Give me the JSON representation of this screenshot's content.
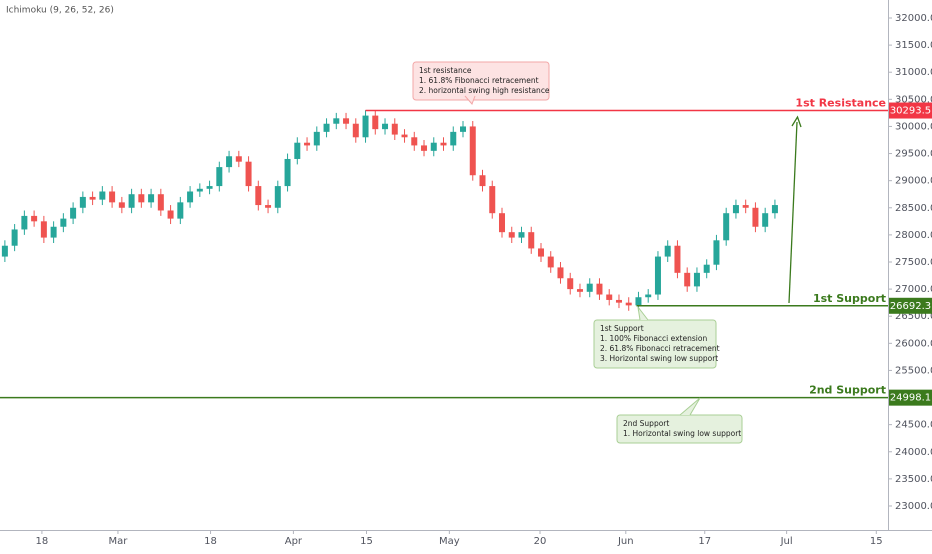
{
  "chart_data": {
    "type": "candlestick",
    "indicator": "Ichimoku (9, 26, 52, 26)",
    "open": [
      27600,
      27800,
      28100,
      28350,
      28250,
      27950,
      28150,
      28300,
      28500,
      28700,
      28650,
      28800,
      28600,
      28500,
      28750,
      28600,
      28750,
      28450,
      28300,
      28600,
      28800,
      28850,
      28900,
      29250,
      29450,
      29350,
      28900,
      28550,
      28500,
      28900,
      29400,
      29700,
      29650,
      29900,
      30050,
      30150,
      30050,
      29800,
      30200,
      29950,
      30050,
      29850,
      29800,
      29650,
      29550,
      29700,
      29650,
      29900,
      30000,
      29100,
      28900,
      28400,
      28050,
      27950,
      28050,
      27750,
      27600,
      27400,
      27200,
      27000,
      26950,
      27100,
      26900,
      26800,
      26750,
      26700,
      26850,
      26900,
      27600,
      27800,
      27300,
      27050,
      27300,
      27450,
      27900,
      28400,
      28550,
      28500,
      28150,
      28400
    ],
    "high": [
      27900,
      28200,
      28450,
      28450,
      28350,
      28250,
      28400,
      28600,
      28800,
      28800,
      28900,
      28900,
      28700,
      28850,
      28850,
      28850,
      28850,
      28550,
      28700,
      28900,
      28950,
      29000,
      29350,
      29550,
      29550,
      29450,
      29000,
      28650,
      29000,
      29500,
      29800,
      29800,
      30000,
      30150,
      30250,
      30250,
      30150,
      30300,
      30300,
      30150,
      30150,
      29950,
      29900,
      29750,
      29800,
      29800,
      30000,
      30100,
      30100,
      29200,
      29000,
      28500,
      28150,
      28150,
      28150,
      27850,
      27700,
      27500,
      27300,
      27100,
      27200,
      27200,
      27000,
      26900,
      26850,
      26950,
      27000,
      27700,
      27900,
      27900,
      27400,
      27400,
      27550,
      28000,
      28500,
      28650,
      28650,
      28600,
      28500,
      28650
    ],
    "low": [
      27500,
      27700,
      28000,
      28150,
      27850,
      27850,
      28050,
      28200,
      28400,
      28550,
      28550,
      28500,
      28400,
      28400,
      28500,
      28500,
      28350,
      28200,
      28200,
      28500,
      28700,
      28750,
      28800,
      29150,
      29250,
      28800,
      28450,
      28400,
      28400,
      28800,
      29300,
      29550,
      29550,
      29800,
      29950,
      29950,
      29700,
      29700,
      29850,
      29850,
      29750,
      29700,
      29550,
      29450,
      29450,
      29550,
      29550,
      29800,
      29000,
      28800,
      28300,
      27950,
      27850,
      27850,
      27650,
      27500,
      27300,
      27100,
      26900,
      26850,
      26850,
      26800,
      26700,
      26650,
      26600,
      26600,
      26750,
      26800,
      27500,
      27200,
      26950,
      26950,
      27200,
      27350,
      27800,
      28300,
      28400,
      28050,
      28050,
      28300
    ],
    "close": [
      27800,
      28100,
      28350,
      28250,
      27950,
      28150,
      28300,
      28500,
      28700,
      28650,
      28800,
      28600,
      28500,
      28750,
      28600,
      28750,
      28450,
      28300,
      28600,
      28800,
      28850,
      28900,
      29250,
      29450,
      29350,
      28900,
      28550,
      28500,
      28900,
      29400,
      29700,
      29650,
      29900,
      30050,
      30150,
      30050,
      29800,
      30200,
      29950,
      30050,
      29850,
      29800,
      29650,
      29550,
      29700,
      29650,
      29900,
      30000,
      29100,
      28900,
      28400,
      28050,
      27950,
      28050,
      27750,
      27600,
      27400,
      27200,
      27000,
      26950,
      27100,
      26900,
      26800,
      26750,
      26700,
      26850,
      26900,
      27600,
      27800,
      27300,
      27050,
      27300,
      27450,
      27900,
      28400,
      28550,
      28500,
      28150,
      28400,
      28550
    ],
    "up_color": "#26a69a",
    "down_color": "#ef5350",
    "xlim": [
      -0.5,
      90.6
    ],
    "xticks": [
      {
        "value": 3.8,
        "label": "18"
      },
      {
        "value": 11.6,
        "label": "Mar"
      },
      {
        "value": 21.1,
        "label": "18"
      },
      {
        "value": 29.6,
        "label": "Apr"
      },
      {
        "value": 37.1,
        "label": "15"
      },
      {
        "value": 45.6,
        "label": "May"
      },
      {
        "value": 54.9,
        "label": "20"
      },
      {
        "value": 63.7,
        "label": "Jun"
      },
      {
        "value": 71.8,
        "label": "17"
      },
      {
        "value": 80.2,
        "label": "Jul"
      },
      {
        "value": 89.4,
        "label": "15"
      }
    ],
    "ylim": [
      22557,
      32332
    ],
    "yticks": [
      {
        "value": 23000,
        "label": "23000.0"
      },
      {
        "value": 23500,
        "label": "23500.0"
      },
      {
        "value": 24000,
        "label": "24000.0"
      },
      {
        "value": 24500,
        "label": "24500.0"
      },
      {
        "value": 25000,
        "label": "25000.0"
      },
      {
        "value": 25500,
        "label": "25500.0"
      },
      {
        "value": 26000,
        "label": "26000.0"
      },
      {
        "value": 26500,
        "label": "26500.0"
      },
      {
        "value": 27000,
        "label": "27000.0"
      },
      {
        "value": 27500,
        "label": "27500.0"
      },
      {
        "value": 28000,
        "label": "28000.0"
      },
      {
        "value": 28500,
        "label": "28500.0"
      },
      {
        "value": 29000,
        "label": "29000.0"
      },
      {
        "value": 29500,
        "label": "29500.0"
      },
      {
        "value": 30000,
        "label": "30000.0"
      },
      {
        "value": 30500,
        "label": "30500.0"
      },
      {
        "value": 31000,
        "label": "31000.0"
      },
      {
        "value": 31500,
        "label": "31500.0"
      },
      {
        "value": 32000,
        "label": "32000.0"
      }
    ],
    "levels": [
      {
        "name": "1st Resistance",
        "value": 30293.5,
        "x_start": 37,
        "color": "#f23645"
      },
      {
        "name": "1st Support",
        "value": 26692.3,
        "x_start": 64.8,
        "color": "#3b7a1d"
      },
      {
        "name": "2nd Support",
        "value": 24998.1,
        "x_start": -0.5,
        "color": "#3b7a1d"
      }
    ],
    "annotations": [
      {
        "lines": [
          "1st resistance",
          "1. 61.8% Fibonacci retracement",
          "2. horizontal swing high resistance"
        ]
      },
      {
        "lines": [
          "1st Support",
          "1. 100% Fibonacci extension",
          "2. 61.8% Fibonacci retracement",
          "3. Horizontal swing low support"
        ]
      },
      {
        "lines": [
          "2nd Support",
          "1.  Horizontal swing low support"
        ]
      }
    ]
  }
}
